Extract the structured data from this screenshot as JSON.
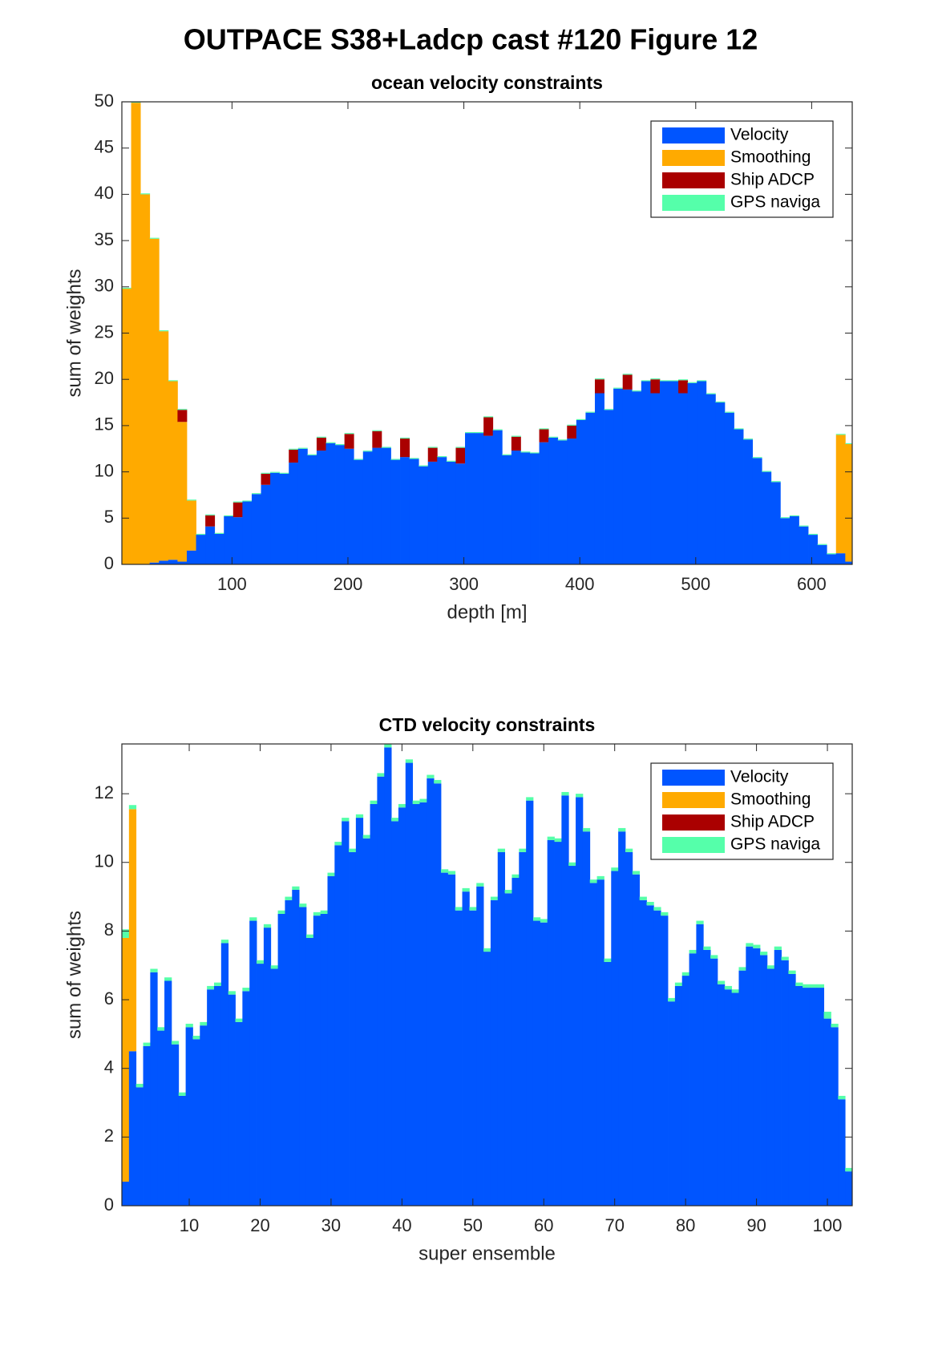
{
  "title": "OUTPACE S38+Ladcp cast #120  Figure 12",
  "chart_data": [
    {
      "type": "bar",
      "stacked": true,
      "title": "ocean velocity constraints",
      "xlabel": "depth [m]",
      "ylabel": "sum of weights",
      "x": [
        9,
        17,
        25,
        33,
        41,
        49,
        57,
        65,
        73,
        81,
        89,
        97,
        105,
        113,
        121,
        129,
        137,
        145,
        153,
        161,
        169,
        177,
        185,
        193,
        201,
        209,
        217,
        225,
        233,
        241,
        249,
        257,
        265,
        273,
        281,
        289,
        297,
        305,
        313,
        321,
        329,
        337,
        345,
        353,
        361,
        369,
        377,
        385,
        393,
        401,
        409,
        417,
        425,
        433,
        441,
        449,
        457,
        465,
        473,
        481,
        489,
        497,
        505,
        513,
        521,
        529,
        537,
        545,
        553,
        561,
        569,
        577,
        585,
        593,
        601,
        609,
        617,
        625,
        633
      ],
      "xlim": [
        5,
        635
      ],
      "xticks": [
        100,
        200,
        300,
        400,
        500,
        600
      ],
      "ylim": [
        0,
        50
      ],
      "yticks": [
        0,
        5,
        10,
        15,
        20,
        25,
        30,
        35,
        40,
        45,
        50
      ],
      "legend": "northeast",
      "series": [
        {
          "name": "Velocity",
          "color": "#0055ff",
          "values": [
            0,
            0,
            0,
            0.2,
            0.4,
            0.5,
            0.3,
            1.5,
            3.2,
            4.1,
            3.3,
            5.2,
            5.1,
            6.8,
            7.6,
            8.6,
            9.9,
            9.8,
            11.0,
            12.5,
            11.8,
            12.3,
            13.1,
            12.9,
            12.5,
            11.3,
            12.2,
            12.6,
            12.6,
            11.3,
            11.6,
            11.4,
            10.6,
            11.1,
            11.6,
            11.1,
            10.9,
            14.2,
            14.2,
            13.9,
            14.5,
            11.8,
            12.3,
            12.1,
            12.0,
            13.2,
            13.7,
            13.4,
            13.6,
            15.6,
            16.4,
            18.5,
            16.7,
            19.0,
            18.9,
            18.7,
            19.8,
            18.5,
            19.8,
            19.8,
            18.5,
            19.6,
            19.8,
            18.4,
            17.5,
            16.4,
            14.6,
            13.5,
            11.5,
            10.0,
            8.9,
            5.0,
            5.2,
            4.1,
            3.2,
            2.1,
            1.1,
            1.2,
            0.3
          ]
        },
        {
          "name": "Smoothing",
          "color": "#ffaa00",
          "values": [
            29.8,
            49.9,
            40,
            35,
            24.8,
            19.3,
            15.1,
            5.4,
            0,
            0,
            0,
            0,
            0,
            0,
            0,
            0,
            0,
            0,
            0,
            0,
            0,
            0,
            0,
            0,
            0,
            0,
            0,
            0,
            0,
            0,
            0,
            0,
            0,
            0,
            0,
            0,
            0,
            0,
            0,
            0,
            0,
            0,
            0,
            0,
            0,
            0,
            0,
            0,
            0,
            0,
            0,
            0,
            0,
            0,
            0,
            0,
            0,
            0,
            0,
            0,
            0,
            0,
            0,
            0,
            0,
            0,
            0,
            0,
            0,
            0,
            0,
            0,
            0,
            0,
            0,
            0,
            0,
            12.8,
            12.7
          ]
        },
        {
          "name": "Ship ADCP",
          "color": "#aa0000",
          "values": [
            0,
            0,
            0,
            0,
            0,
            0,
            1.3,
            0,
            0,
            1.2,
            0,
            0,
            1.6,
            0,
            0,
            1.2,
            0,
            0,
            1.4,
            0,
            0,
            1.4,
            0,
            0,
            1.6,
            0,
            0,
            1.8,
            0,
            0,
            2.0,
            0,
            0,
            1.5,
            0,
            0,
            1.7,
            0,
            0,
            2.0,
            0,
            0,
            1.5,
            0,
            0,
            1.4,
            0,
            0,
            1.4,
            0,
            0,
            1.5,
            0,
            0,
            1.6,
            0,
            0,
            1.5,
            0,
            0,
            1.4,
            0,
            0,
            0,
            0,
            0,
            0,
            0,
            0,
            0,
            0,
            0,
            0,
            0,
            0,
            0,
            0,
            0,
            0
          ]
        },
        {
          "name": "GPS naviga",
          "color": "#55ffaa",
          "values": [
            0.1,
            0.1,
            0.1,
            0.1,
            0.1,
            0.1,
            0.1,
            0.1,
            0.1,
            0.1,
            0.1,
            0.1,
            0.1,
            0.1,
            0.1,
            0.1,
            0.1,
            0.1,
            0.1,
            0.1,
            0.1,
            0.1,
            0.1,
            0.1,
            0.1,
            0.1,
            0.1,
            0.1,
            0.1,
            0.1,
            0.1,
            0.1,
            0.1,
            0.1,
            0.1,
            0.1,
            0.1,
            0.1,
            0.1,
            0.1,
            0.1,
            0.1,
            0.1,
            0.1,
            0.1,
            0.1,
            0.1,
            0.1,
            0.1,
            0.1,
            0.1,
            0.1,
            0.1,
            0.1,
            0.1,
            0.1,
            0.1,
            0.1,
            0.1,
            0.1,
            0.1,
            0.1,
            0.1,
            0.1,
            0.1,
            0.1,
            0.1,
            0.1,
            0.1,
            0.1,
            0.1,
            0.1,
            0.1,
            0.1,
            0.1,
            0.1,
            0.1,
            0.1,
            0.1
          ]
        }
      ]
    },
    {
      "type": "bar",
      "stacked": true,
      "title": "CTD velocity constraints",
      "xlabel": "super ensemble",
      "ylabel": "sum of weights",
      "x": [
        1,
        2,
        3,
        4,
        5,
        6,
        7,
        8,
        9,
        10,
        11,
        12,
        13,
        14,
        15,
        16,
        17,
        18,
        19,
        20,
        21,
        22,
        23,
        24,
        25,
        26,
        27,
        28,
        29,
        30,
        31,
        32,
        33,
        34,
        35,
        36,
        37,
        38,
        39,
        40,
        41,
        42,
        43,
        44,
        45,
        46,
        47,
        48,
        49,
        50,
        51,
        52,
        53,
        54,
        55,
        56,
        57,
        58,
        59,
        60,
        61,
        62,
        63,
        64,
        65,
        66,
        67,
        68,
        69,
        70,
        71,
        72,
        73,
        74,
        75,
        76,
        77,
        78,
        79,
        80,
        81,
        82,
        83,
        84,
        85,
        86,
        87,
        88,
        89,
        90,
        91,
        92,
        93,
        94,
        95,
        96,
        97,
        98,
        99,
        100,
        101,
        102,
        103
      ],
      "xlim": [
        0.5,
        103.5
      ],
      "xticks": [
        10,
        20,
        30,
        40,
        50,
        60,
        70,
        80,
        90,
        100
      ],
      "ylim": [
        0,
        13.45
      ],
      "yticks": [
        0,
        2,
        4,
        6,
        8,
        10,
        12
      ],
      "legend": "northeast",
      "series": [
        {
          "name": "Velocity",
          "color": "#0055ff",
          "values": [
            0.7,
            4.5,
            3.45,
            4.65,
            6.8,
            5.1,
            6.55,
            4.7,
            3.2,
            5.2,
            4.85,
            5.25,
            6.3,
            6.4,
            7.65,
            6.15,
            5.35,
            6.25,
            8.3,
            7.05,
            8.1,
            6.9,
            8.5,
            8.9,
            9.2,
            8.7,
            7.8,
            8.45,
            8.5,
            9.6,
            10.5,
            11.2,
            10.3,
            11.3,
            10.7,
            11.7,
            12.5,
            13.35,
            11.2,
            11.6,
            12.9,
            11.7,
            11.75,
            12.45,
            12.3,
            9.7,
            9.65,
            8.6,
            9.15,
            8.6,
            9.3,
            7.4,
            8.9,
            10.3,
            9.1,
            9.55,
            10.3,
            11.8,
            8.3,
            8.25,
            10.65,
            10.6,
            11.95,
            9.9,
            11.9,
            10.9,
            9.4,
            9.5,
            7.1,
            9.75,
            10.9,
            10.3,
            9.65,
            8.9,
            8.75,
            8.6,
            8.45,
            5.95,
            6.4,
            6.7,
            7.35,
            8.2,
            7.45,
            7.2,
            6.45,
            6.3,
            6.2,
            6.85,
            7.55,
            7.5,
            7.3,
            6.9,
            7.45,
            7.15,
            6.75,
            6.4,
            6.35,
            6.35,
            6.35,
            5.45,
            5.2,
            3.1,
            1.0
          ]
        },
        {
          "name": "Smoothing",
          "color": "#ffaa00",
          "values": [
            7.1,
            7.05,
            0,
            0,
            0,
            0,
            0,
            0,
            0,
            0,
            0,
            0,
            0,
            0,
            0,
            0,
            0,
            0,
            0,
            0,
            0,
            0,
            0,
            0,
            0,
            0,
            0,
            0,
            0,
            0,
            0,
            0,
            0,
            0,
            0,
            0,
            0,
            0,
            0,
            0,
            0,
            0,
            0,
            0,
            0,
            0,
            0,
            0,
            0,
            0,
            0,
            0,
            0,
            0,
            0,
            0,
            0,
            0,
            0,
            0,
            0,
            0,
            0,
            0,
            0,
            0,
            0,
            0,
            0,
            0,
            0,
            0,
            0,
            0,
            0,
            0,
            0,
            0,
            0,
            0,
            0,
            0,
            0,
            0,
            0,
            0,
            0,
            0,
            0,
            0,
            0,
            0,
            0,
            0,
            0,
            0,
            0,
            0,
            0,
            0,
            0,
            0,
            0
          ]
        },
        {
          "name": "Ship ADCP",
          "color": "#aa0000",
          "values": [
            0,
            0,
            0,
            0,
            0,
            0,
            0,
            0,
            0,
            0,
            0,
            0,
            0,
            0,
            0,
            0,
            0,
            0,
            0,
            0,
            0,
            0,
            0,
            0,
            0,
            0,
            0,
            0,
            0,
            0,
            0,
            0,
            0,
            0,
            0,
            0,
            0,
            0,
            0,
            0,
            0,
            0,
            0,
            0,
            0,
            0,
            0,
            0,
            0,
            0,
            0,
            0,
            0,
            0,
            0,
            0,
            0,
            0,
            0,
            0,
            0,
            0,
            0,
            0,
            0,
            0,
            0,
            0,
            0,
            0,
            0,
            0,
            0,
            0,
            0,
            0,
            0,
            0,
            0,
            0,
            0,
            0,
            0,
            0,
            0,
            0,
            0,
            0,
            0,
            0,
            0,
            0,
            0,
            0,
            0,
            0,
            0,
            0,
            0,
            0,
            0,
            0,
            0
          ]
        },
        {
          "name": "GPS naviga",
          "color": "#55ffaa",
          "values": [
            0.25,
            0.12,
            0.1,
            0.1,
            0.1,
            0.1,
            0.1,
            0.1,
            0.1,
            0.1,
            0.1,
            0.1,
            0.1,
            0.1,
            0.1,
            0.1,
            0.1,
            0.1,
            0.1,
            0.1,
            0.1,
            0.1,
            0.1,
            0.1,
            0.1,
            0.1,
            0.1,
            0.1,
            0.1,
            0.1,
            0.1,
            0.1,
            0.1,
            0.1,
            0.1,
            0.1,
            0.1,
            0.1,
            0.1,
            0.1,
            0.1,
            0.1,
            0.1,
            0.1,
            0.1,
            0.1,
            0.1,
            0.1,
            0.1,
            0.1,
            0.1,
            0.1,
            0.1,
            0.1,
            0.1,
            0.1,
            0.1,
            0.1,
            0.1,
            0.1,
            0.1,
            0.1,
            0.1,
            0.1,
            0.1,
            0.1,
            0.1,
            0.1,
            0.1,
            0.1,
            0.1,
            0.1,
            0.1,
            0.1,
            0.1,
            0.1,
            0.1,
            0.1,
            0.1,
            0.1,
            0.1,
            0.1,
            0.1,
            0.1,
            0.1,
            0.1,
            0.1,
            0.1,
            0.1,
            0.1,
            0.1,
            0.1,
            0.1,
            0.1,
            0.1,
            0.1,
            0.1,
            0.1,
            0.1,
            0.2,
            0.1,
            0.1,
            0.1
          ]
        }
      ]
    }
  ]
}
